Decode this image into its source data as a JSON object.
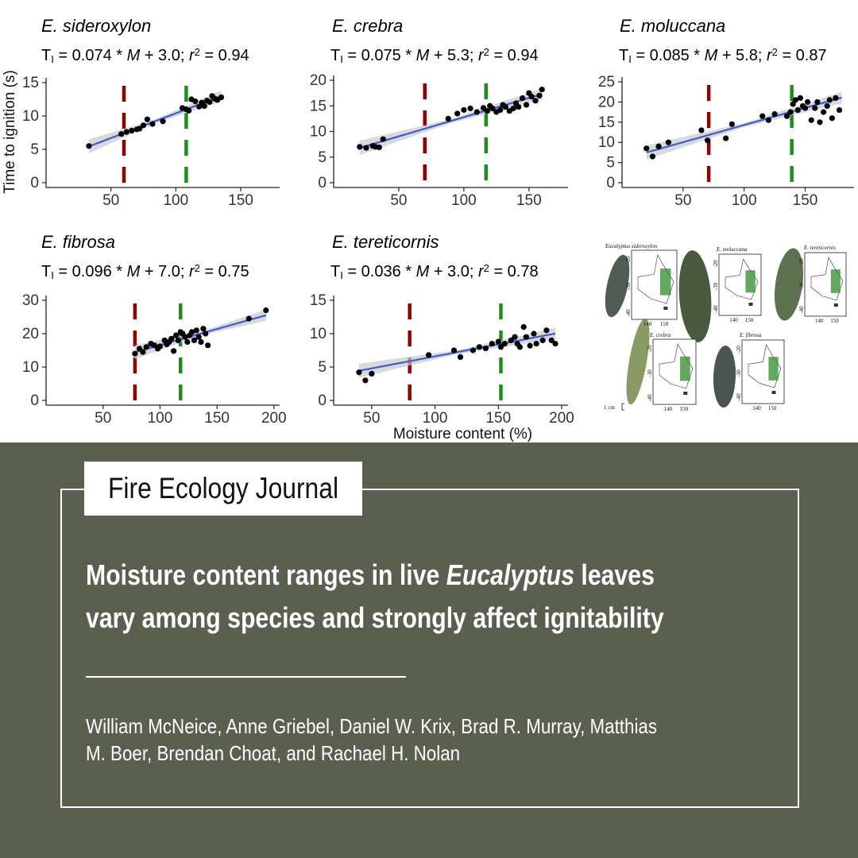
{
  "chart_data": [
    {
      "type": "scatter",
      "title": "E. sideroxylon",
      "equation": {
        "prefix": "T",
        "sub": "I",
        "body": " = 0.074 * ",
        "var": "M",
        "rest": " + 3.0; ",
        "r": "r",
        "sup": "2",
        "tail": " = 0.94"
      },
      "slope": 0.074,
      "intercept": 3.0,
      "r2": 0.94,
      "xlim": [
        0,
        180
      ],
      "ylim": [
        0,
        15
      ],
      "xticks": [
        50,
        100,
        150
      ],
      "yticks": [
        0,
        5,
        10,
        15
      ],
      "xlabel": "",
      "ylabel": "Time to ignition (s)",
      "lower_threshold": 60,
      "upper_threshold": 108,
      "fit_range": [
        33,
        135
      ],
      "points": [
        [
          33,
          5.5
        ],
        [
          58,
          7.3
        ],
        [
          62,
          7.6
        ],
        [
          66,
          7.8
        ],
        [
          70,
          8.0
        ],
        [
          72,
          8.1
        ],
        [
          75,
          8.6
        ],
        [
          78,
          9.5
        ],
        [
          82,
          8.8
        ],
        [
          90,
          9.2
        ],
        [
          105,
          11.2
        ],
        [
          108,
          11.0
        ],
        [
          110,
          10.8
        ],
        [
          112,
          12.5
        ],
        [
          115,
          12.2
        ],
        [
          118,
          11.4
        ],
        [
          120,
          12.0
        ],
        [
          122,
          11.5
        ],
        [
          124,
          12.3
        ],
        [
          126,
          12.1
        ],
        [
          128,
          13.0
        ],
        [
          130,
          12.6
        ],
        [
          132,
          12.4
        ],
        [
          135,
          12.8
        ]
      ]
    },
    {
      "type": "scatter",
      "title": "E. crebra",
      "equation": {
        "prefix": "T",
        "sub": "I",
        "body": " = 0.075 * ",
        "var": "M",
        "rest": " + 5.3; ",
        "r": "r",
        "sup": "2",
        "tail": " = 0.94"
      },
      "slope": 0.075,
      "intercept": 5.3,
      "r2": 0.94,
      "xlim": [
        0,
        180
      ],
      "ylim": [
        0,
        20
      ],
      "xticks": [
        50,
        100,
        150
      ],
      "yticks": [
        0,
        5,
        10,
        15,
        20
      ],
      "xlabel": "",
      "ylabel": "",
      "lower_threshold": 70,
      "upper_threshold": 117,
      "fit_range": [
        20,
        160
      ],
      "points": [
        [
          20,
          7.0
        ],
        [
          25,
          6.8
        ],
        [
          30,
          7.2
        ],
        [
          32,
          7.0
        ],
        [
          35,
          6.9
        ],
        [
          38,
          8.5
        ],
        [
          88,
          12.5
        ],
        [
          95,
          13.5
        ],
        [
          100,
          14.2
        ],
        [
          105,
          14.5
        ],
        [
          110,
          13.8
        ],
        [
          115,
          14.6
        ],
        [
          118,
          14.0
        ],
        [
          120,
          15.0
        ],
        [
          122,
          14.5
        ],
        [
          125,
          13.8
        ],
        [
          128,
          14.2
        ],
        [
          130,
          15.2
        ],
        [
          132,
          14.8
        ],
        [
          135,
          14.0
        ],
        [
          138,
          14.5
        ],
        [
          140,
          15.5
        ],
        [
          142,
          14.8
        ],
        [
          145,
          16.5
        ],
        [
          148,
          15.2
        ],
        [
          150,
          17.5
        ],
        [
          152,
          16.8
        ],
        [
          155,
          16.0
        ],
        [
          158,
          17.0
        ],
        [
          160,
          18.2
        ]
      ]
    },
    {
      "type": "scatter",
      "title": "E. moluccana",
      "equation": {
        "prefix": "T",
        "sub": "I",
        "body": " = 0.085 * ",
        "var": "M",
        "rest": " + 5.8; ",
        "r": "r",
        "sup": "2",
        "tail": " = 0.87"
      },
      "slope": 0.085,
      "intercept": 5.8,
      "r2": 0.87,
      "xlim": [
        0,
        190
      ],
      "ylim": [
        0,
        25
      ],
      "xticks": [
        50,
        100,
        150
      ],
      "yticks": [
        0,
        5,
        10,
        15,
        20,
        25
      ],
      "xlabel": "",
      "ylabel": "",
      "lower_threshold": 71,
      "upper_threshold": 139,
      "fit_range": [
        20,
        180
      ],
      "points": [
        [
          20,
          8.5
        ],
        [
          25,
          6.5
        ],
        [
          30,
          9.0
        ],
        [
          38,
          10.0
        ],
        [
          65,
          13.0
        ],
        [
          70,
          10.5
        ],
        [
          85,
          11.0
        ],
        [
          90,
          14.5
        ],
        [
          115,
          16.5
        ],
        [
          120,
          15.5
        ],
        [
          125,
          17.0
        ],
        [
          135,
          16.5
        ],
        [
          138,
          17.5
        ],
        [
          140,
          19.5
        ],
        [
          142,
          20.5
        ],
        [
          144,
          18.0
        ],
        [
          146,
          21.0
        ],
        [
          148,
          19.0
        ],
        [
          150,
          18.5
        ],
        [
          152,
          20.0
        ],
        [
          155,
          15.5
        ],
        [
          158,
          18.5
        ],
        [
          160,
          20.0
        ],
        [
          162,
          15.0
        ],
        [
          165,
          17.5
        ],
        [
          168,
          19.0
        ],
        [
          170,
          20.5
        ],
        [
          172,
          16.0
        ],
        [
          175,
          21.0
        ],
        [
          178,
          18.0
        ]
      ]
    },
    {
      "type": "scatter",
      "title": "E. fibrosa",
      "equation": {
        "prefix": "T",
        "sub": "I",
        "body": " = 0.096 * ",
        "var": "M",
        "rest": " + 7.0; ",
        "r": "r",
        "sup": "2",
        "tail": " = 0.75"
      },
      "slope": 0.096,
      "intercept": 7.0,
      "r2": 0.75,
      "xlim": [
        0,
        205
      ],
      "ylim": [
        0,
        30
      ],
      "xticks": [
        50,
        100,
        150,
        200
      ],
      "yticks": [
        0,
        10,
        20,
        30
      ],
      "xlabel": "",
      "ylabel": "",
      "lower_threshold": 78,
      "upper_threshold": 118,
      "fit_range": [
        78,
        193
      ],
      "points": [
        [
          78,
          14.0
        ],
        [
          82,
          15.5
        ],
        [
          85,
          14.5
        ],
        [
          88,
          16.0
        ],
        [
          92,
          17.0
        ],
        [
          95,
          16.5
        ],
        [
          98,
          15.5
        ],
        [
          100,
          16.2
        ],
        [
          104,
          18.0
        ],
        [
          106,
          16.8
        ],
        [
          108,
          17.5
        ],
        [
          110,
          18.5
        ],
        [
          112,
          14.8
        ],
        [
          114,
          19.5
        ],
        [
          116,
          18.0
        ],
        [
          118,
          20.5
        ],
        [
          120,
          20.0
        ],
        [
          122,
          19.0
        ],
        [
          124,
          17.5
        ],
        [
          126,
          19.5
        ],
        [
          128,
          20.5
        ],
        [
          130,
          18.0
        ],
        [
          132,
          21.0
        ],
        [
          134,
          19.0
        ],
        [
          136,
          17.5
        ],
        [
          138,
          21.5
        ],
        [
          140,
          20.0
        ],
        [
          142,
          16.5
        ],
        [
          178,
          24.5
        ],
        [
          193,
          27.0
        ]
      ]
    },
    {
      "type": "scatter",
      "title": "E. tereticornis",
      "equation": {
        "prefix": "T",
        "sub": "I",
        "body": " = 0.036 * ",
        "var": "M",
        "rest": " + 3.0; ",
        "r": "r",
        "sup": "2",
        "tail": " = 0.78"
      },
      "slope": 0.036,
      "intercept": 3.0,
      "r2": 0.78,
      "xlim": [
        20,
        205
      ],
      "ylim": [
        0,
        15
      ],
      "xticks": [
        50,
        100,
        150,
        200
      ],
      "yticks": [
        0,
        5,
        10,
        15
      ],
      "xlabel": "Moisture content (%)",
      "ylabel": "",
      "lower_threshold": 80,
      "upper_threshold": 152,
      "fit_range": [
        40,
        195
      ],
      "points": [
        [
          40,
          4.2
        ],
        [
          45,
          3.0
        ],
        [
          50,
          4.0
        ],
        [
          95,
          6.8
        ],
        [
          115,
          7.5
        ],
        [
          120,
          6.5
        ],
        [
          130,
          7.5
        ],
        [
          135,
          8.0
        ],
        [
          140,
          7.8
        ],
        [
          145,
          8.5
        ],
        [
          150,
          8.8
        ],
        [
          152,
          8.0
        ],
        [
          155,
          8.5
        ],
        [
          160,
          9.0
        ],
        [
          163,
          9.5
        ],
        [
          165,
          8.5
        ],
        [
          167,
          8.0
        ],
        [
          170,
          11.0
        ],
        [
          172,
          9.5
        ],
        [
          175,
          8.2
        ],
        [
          178,
          10.0
        ],
        [
          180,
          8.5
        ],
        [
          185,
          9.0
        ],
        [
          188,
          10.5
        ],
        [
          192,
          9.0
        ],
        [
          195,
          8.5
        ]
      ]
    }
  ],
  "colors": {
    "lower_line": "#8b0000",
    "upper_line": "#1e8c1e",
    "fit_line": "#3b5bdb",
    "band": "#c9c9c9",
    "points": "#000000",
    "panel_bg": "#5b5f50"
  },
  "maps": {
    "species": [
      "Eucalyptus sideroxylon",
      "E. moluccana",
      "E. tereticornis",
      "E. crebra",
      "E. fibrosa"
    ],
    "yticks": [
      "-20",
      "-30",
      "-40"
    ],
    "xticks": [
      "140",
      "150"
    ],
    "scale": "1 cm"
  },
  "journal": "Fire Ecology Journal",
  "headline": {
    "pre": "Moisture content ranges in live ",
    "italic": "Eucalyptus",
    "post": " leaves",
    "line2": "vary among species and strongly affect ignitability"
  },
  "authors": {
    "line1": "William McNeice, Anne Griebel, Daniel W. Krix, Brad R. Murray, Matthias",
    "line2": "M. Boer, Brendan Choat, and Rachael H. Nolan"
  }
}
